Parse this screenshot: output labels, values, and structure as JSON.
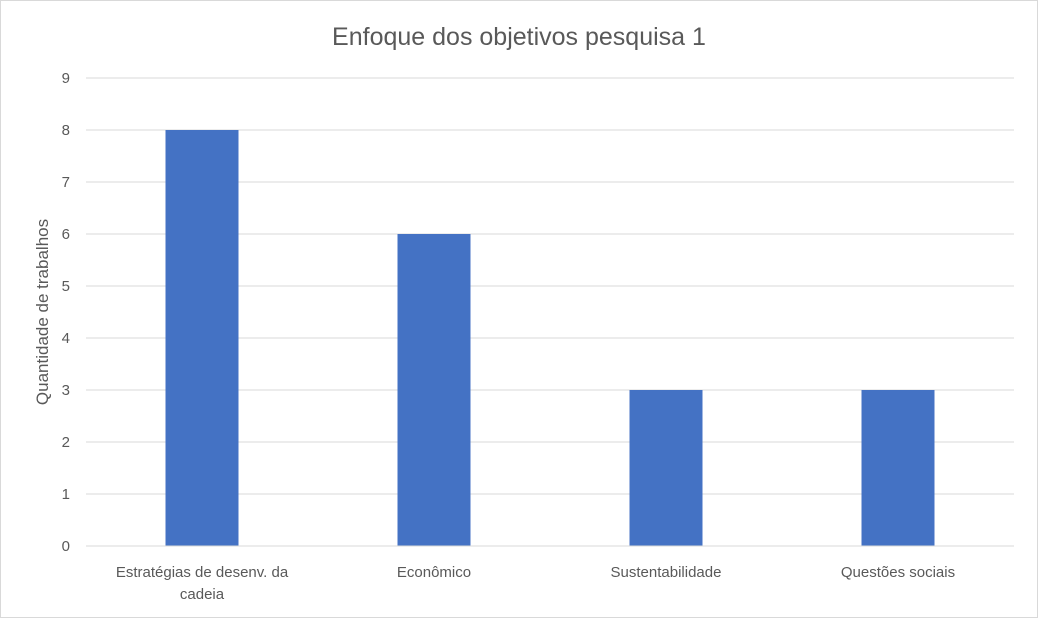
{
  "chart_data": {
    "type": "bar",
    "title": "Enfoque dos objetivos pesquisa 1",
    "xlabel": "",
    "ylabel": "Quantidade de trabalhos",
    "categories": [
      [
        "Estratégias de desenv. da",
        "cadeia"
      ],
      [
        "Econômico"
      ],
      [
        "Sustentabilidade"
      ],
      [
        "Questões sociais"
      ]
    ],
    "values": [
      8,
      6,
      3,
      3
    ],
    "ylim": [
      0,
      9
    ],
    "yticks": [
      "0",
      "1",
      "2",
      "3",
      "4",
      "5",
      "6",
      "7",
      "8",
      "9"
    ],
    "grid": true,
    "legend": "none",
    "bar_color": "#4472c4"
  }
}
